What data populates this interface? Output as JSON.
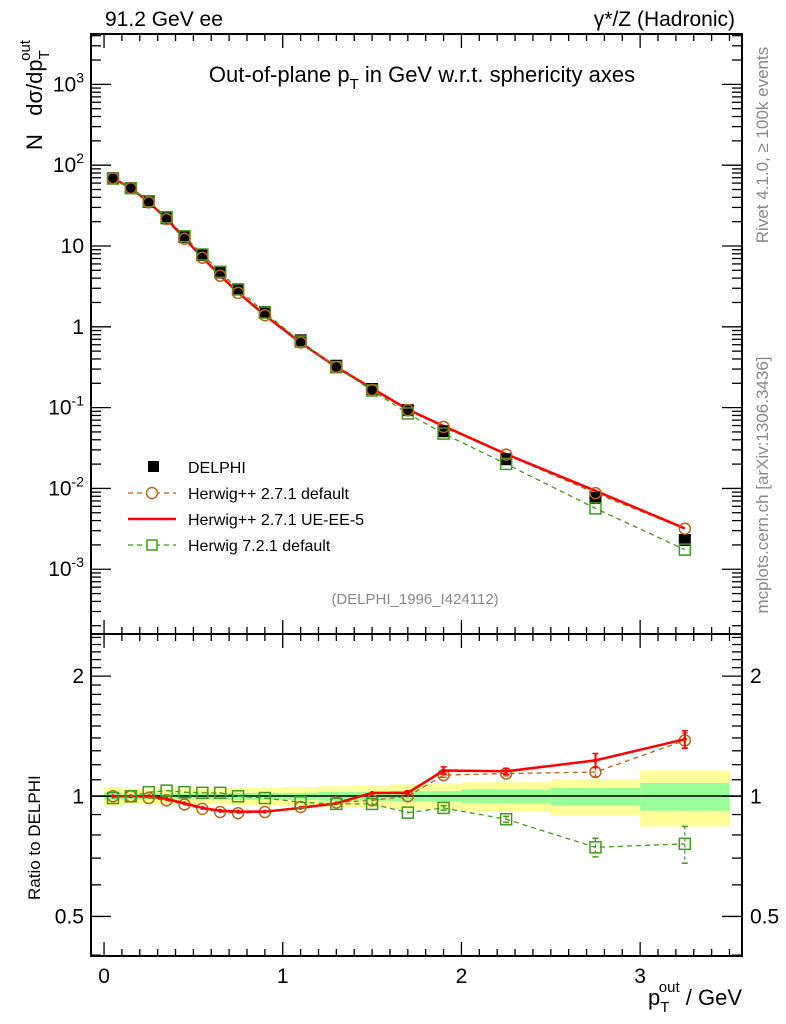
{
  "header": {
    "left": "91.2 GeV ee",
    "right": "γ*/Z (Hadronic)"
  },
  "side_labels": {
    "rivet": "Rivet 4.1.0, ≥ 100k events",
    "mcplots": "mcplots.cern.ch [arXiv:1306.3436]"
  },
  "watermark": "(DELPHI_1996_I424112)",
  "chart_data": [
    {
      "type": "line",
      "panel": "main",
      "title": {
        "pre": "Out-of-plane p",
        "sub": "T",
        "post": " in GeV w.r.t. sphericity axes"
      },
      "ylabel": {
        "pre": "N   dσ/dp",
        "sub": "T",
        "sup": "out"
      },
      "yscale": "log",
      "ylim": [
        0.000158,
        4200
      ],
      "xlim": [
        -0.073,
        3.57
      ],
      "ytick_labels": [
        {
          "value": 0.001,
          "base": "10",
          "exp": "-3"
        },
        {
          "value": 0.01,
          "base": "10",
          "exp": "-2"
        },
        {
          "value": 0.1,
          "base": "10",
          "exp": "-1"
        },
        {
          "value": 1,
          "base": "1",
          "exp": ""
        },
        {
          "value": 10,
          "base": "10",
          "exp": ""
        },
        {
          "value": 100,
          "base": "10",
          "exp": "2"
        },
        {
          "value": 1000,
          "base": "10",
          "exp": "3"
        }
      ],
      "x": [
        0.05,
        0.15,
        0.25,
        0.35,
        0.45,
        0.55,
        0.65,
        0.75,
        0.9,
        1.1,
        1.3,
        1.5,
        1.7,
        1.9,
        2.25,
        2.75,
        3.25
      ],
      "bin_edges": [
        0,
        0.1,
        0.2,
        0.3,
        0.4,
        0.5,
        0.6,
        0.7,
        0.8,
        1.0,
        1.2,
        1.4,
        1.6,
        1.8,
        2.0,
        2.5,
        3.0,
        3.5
      ],
      "legend": {
        "placement": "center-left"
      },
      "series": [
        {
          "name": "DELPHI",
          "style": "data",
          "color": "#000000",
          "values": [
            69,
            52,
            35,
            22,
            12.9,
            7.7,
            4.7,
            2.9,
            1.52,
            0.68,
            0.33,
            0.17,
            0.093,
            0.051,
            0.023,
            0.0076,
            0.0023
          ]
        },
        {
          "name": "Herwig++ 2.7.1 default",
          "style": "circle-dashed",
          "color": "#b5651d",
          "values": [
            69,
            52,
            34.7,
            21.5,
            12.3,
            7.16,
            4.29,
            2.63,
            1.39,
            0.64,
            0.318,
            0.166,
            0.093,
            0.0576,
            0.0262,
            0.00874,
            0.00317
          ]
        },
        {
          "name": "Herwig++ 2.7.1 UE-EE-5",
          "style": "solid",
          "color": "#ff0000",
          "values": [
            69,
            52,
            35,
            21.7,
            12.4,
            7.2,
            4.32,
            2.65,
            1.39,
            0.636,
            0.317,
            0.173,
            0.0949,
            0.0592,
            0.0266,
            0.00935,
            0.0032
          ]
        },
        {
          "name": "Herwig 7.2.1 default",
          "style": "square-dashed",
          "color": "#3f9a1f",
          "values": [
            68.3,
            52,
            35.8,
            22.7,
            13.2,
            7.85,
            4.79,
            2.9,
            1.5,
            0.657,
            0.316,
            0.163,
            0.0846,
            0.0477,
            0.0201,
            0.00566,
            0.00175
          ]
        }
      ]
    },
    {
      "type": "line",
      "panel": "ratio",
      "ylabel": "Ratio to DELPHI",
      "xlabel": {
        "pre": "p",
        "sub": "T",
        "sup": "out",
        "post": " / GeV"
      },
      "yscale": "log",
      "ylim": [
        0.398,
        2.55
      ],
      "xlim": [
        -0.073,
        3.57
      ],
      "xtick_labels": [
        "0",
        "1",
        "2",
        "3"
      ],
      "ytick_labels": [
        "0.5",
        "1",
        "2"
      ],
      "ytick_values": [
        0.5,
        1,
        2
      ],
      "bands": {
        "total_color": "#ffff99",
        "stat_color": "#99ff99",
        "total_halfwidth": [
          0.055,
          0.045,
          0.045,
          0.045,
          0.045,
          0.045,
          0.045,
          0.05,
          0.05,
          0.055,
          0.06,
          0.065,
          0.07,
          0.075,
          0.085,
          0.105,
          0.16
        ],
        "stat_halfwidth": [
          0.02,
          0.015,
          0.015,
          0.015,
          0.015,
          0.015,
          0.015,
          0.02,
          0.02,
          0.02,
          0.025,
          0.025,
          0.03,
          0.03,
          0.04,
          0.05,
          0.08
        ]
      },
      "series": [
        {
          "name": "Herwig++ 2.7.1 default",
          "color": "#b5651d",
          "values": [
            1.0,
            1.0,
            0.99,
            0.977,
            0.954,
            0.93,
            0.913,
            0.907,
            0.913,
            0.94,
            0.965,
            0.977,
            1.0,
            1.13,
            1.14,
            1.15,
            1.38
          ],
          "errors": [
            0.004,
            0.004,
            0.004,
            0.004,
            0.004,
            0.004,
            0.004,
            0.004,
            0.004,
            0.005,
            0.006,
            0.008,
            0.01,
            0.015,
            0.015,
            0.03,
            0.06
          ]
        },
        {
          "name": "Herwig++ 2.7.1 UE-EE-5",
          "color": "#ff0000",
          "values": [
            1.0,
            1.0,
            1.0,
            0.985,
            0.96,
            0.935,
            0.92,
            0.915,
            0.915,
            0.935,
            0.96,
            1.02,
            1.02,
            1.16,
            1.155,
            1.23,
            1.39
          ],
          "errors": [
            0.004,
            0.004,
            0.004,
            0.004,
            0.004,
            0.004,
            0.004,
            0.004,
            0.004,
            0.005,
            0.006,
            0.01,
            0.012,
            0.025,
            0.02,
            0.05,
            0.07
          ]
        },
        {
          "name": "Herwig 7.2.1 default",
          "color": "#3f9a1f",
          "values": [
            0.99,
            1.0,
            1.024,
            1.033,
            1.024,
            1.02,
            1.02,
            1.0,
            0.99,
            0.966,
            0.957,
            0.957,
            0.91,
            0.935,
            0.876,
            0.745,
            0.76
          ],
          "errors": [
            0.004,
            0.004,
            0.004,
            0.004,
            0.004,
            0.004,
            0.004,
            0.004,
            0.004,
            0.005,
            0.006,
            0.008,
            0.01,
            0.012,
            0.015,
            0.04,
            0.08
          ]
        }
      ]
    }
  ]
}
